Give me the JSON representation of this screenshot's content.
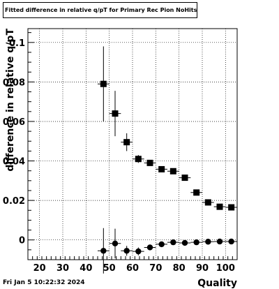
{
  "title": "Fitted difference in relative q/pT for Primary Rec Pion NoHits",
  "timestamp": "Fri Jan  5 10:22:32 2024",
  "chart_data": {
    "type": "scatter",
    "title": "Fitted difference in relative q/pT for Primary Rec Pion NoHits",
    "xlabel": "Quality",
    "ylabel": "difference in relative q/pT",
    "xlim": [
      15,
      105
    ],
    "ylim": [
      -0.01,
      0.107
    ],
    "xticks": [
      20,
      30,
      40,
      50,
      60,
      70,
      80,
      90,
      100
    ],
    "xtick_labels": [
      "20",
      "30",
      "40",
      "50",
      "60",
      "70",
      "80",
      "90",
      "100"
    ],
    "yticks": [
      0,
      0.02,
      0.04,
      0.06,
      0.08,
      0.1
    ],
    "ytick_labels": [
      "0",
      "0.02",
      "0.04",
      "0.06",
      "0.08",
      "0.1"
    ],
    "grid": true,
    "series": [
      {
        "marker": "square",
        "color": "#000000",
        "x": [
          47.5,
          52.5,
          57.5,
          62.5,
          67.5,
          72.5,
          77.5,
          82.5,
          87.5,
          92.5,
          97.5,
          102.5
        ],
        "y": [
          0.079,
          0.064,
          0.0495,
          0.041,
          0.039,
          0.0358,
          0.0348,
          0.0315,
          0.024,
          0.019,
          0.0168,
          0.0165
        ],
        "yerr": [
          0.019,
          0.0115,
          0.0045,
          0.002,
          0.0015,
          0.0008,
          0.0007,
          0.0006,
          0.0005,
          0.0004,
          0.0004,
          0.0004
        ],
        "xerr": 2.5
      },
      {
        "marker": "circle",
        "color": "#000000",
        "x": [
          47.5,
          52.5,
          57.5,
          62.5,
          67.5,
          72.5,
          77.5,
          82.5,
          87.5,
          92.5,
          97.5,
          102.5
        ],
        "y": [
          -0.0055,
          -0.0018,
          -0.0055,
          -0.0058,
          -0.0038,
          -0.0022,
          -0.0012,
          -0.0015,
          -0.0012,
          -0.0009,
          -0.0008,
          -0.0008
        ],
        "yerr": [
          0.0115,
          0.0075,
          0.0025,
          0.002,
          0.0012,
          0.0008,
          0.0005,
          0.0004,
          0.0004,
          0.0003,
          0.0003,
          0.0003
        ],
        "xerr": 2.5
      }
    ]
  }
}
